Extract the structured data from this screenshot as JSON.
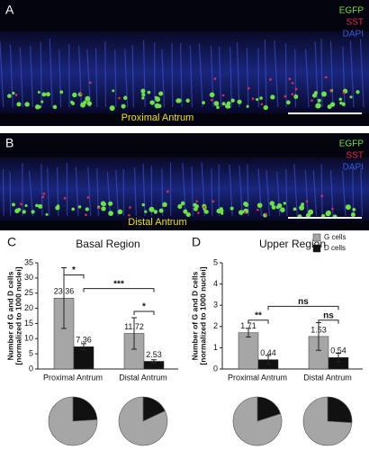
{
  "panels": [
    {
      "label": "A",
      "channels": [
        "EGFP",
        "SST",
        "DAPI"
      ],
      "caption": "Proximal Antrum"
    },
    {
      "label": "B",
      "channels": [
        "EGFP",
        "SST",
        "DAPI"
      ],
      "caption": "Distal Antrum"
    }
  ],
  "chart_data": [
    {
      "type": "bar",
      "label": "C",
      "title": "Basal Region",
      "y_label": [
        "Number of G and D cells",
        "[normalized to 1000 nuclei]"
      ],
      "categories": [
        "Proximal Antrum",
        "Distal Antrum"
      ],
      "series": [
        {
          "name": "G cells",
          "color": "#a6a6a6",
          "values": [
            23.36,
            11.72
          ],
          "errors": [
            10,
            5.2
          ]
        },
        {
          "name": "D cells",
          "color": "#111111",
          "values": [
            7.36,
            2.53
          ],
          "errors": [
            1,
            0.5
          ]
        }
      ],
      "ylim": [
        0,
        35
      ],
      "yticks": [
        0,
        5,
        10,
        15,
        20,
        25,
        30,
        35
      ],
      "annotations": [
        {
          "text": "*"
        },
        {
          "text": "***"
        },
        {
          "text": "*"
        }
      ],
      "pies": [
        {
          "values": [
            76,
            24
          ]
        },
        {
          "values": [
            82,
            18
          ]
        }
      ]
    },
    {
      "type": "bar",
      "label": "D",
      "title": "Upper Region",
      "y_label": [
        "Number of G and D cells",
        "[normalized to 1000 nuclei]"
      ],
      "categories": [
        "Proximal Antrum",
        "Distal Antrum"
      ],
      "series": [
        {
          "name": "G cells",
          "color": "#a6a6a6",
          "values": [
            1.71,
            1.53
          ],
          "errors": [
            0.2,
            0.65
          ]
        },
        {
          "name": "D cells",
          "color": "#111111",
          "values": [
            0.44,
            0.54
          ],
          "errors": [
            0.2,
            0.2
          ]
        }
      ],
      "ylim": [
        0,
        5
      ],
      "yticks": [
        0,
        1,
        2,
        3,
        4,
        5
      ],
      "annotations": [
        {
          "text": "**"
        },
        {
          "text": "ns"
        },
        {
          "text": "ns"
        }
      ],
      "pies": [
        {
          "values": [
            80,
            20
          ]
        },
        {
          "values": [
            74,
            26
          ]
        }
      ],
      "legend": "top-right"
    }
  ]
}
